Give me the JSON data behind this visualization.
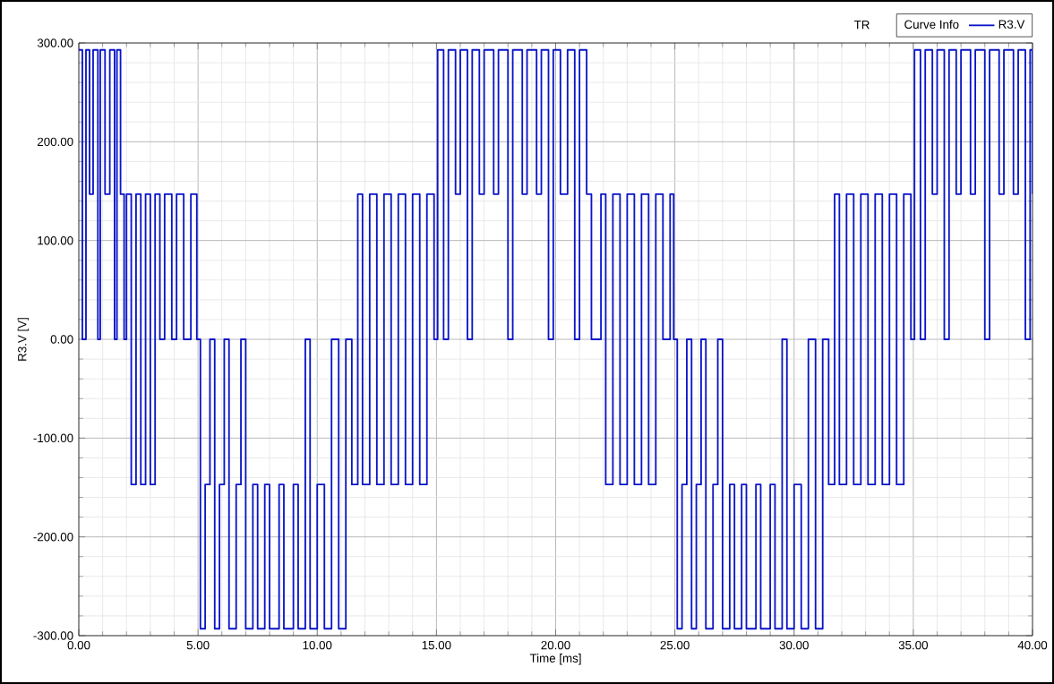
{
  "chart_data": {
    "type": "step",
    "x": [
      0,
      0.15,
      0.3,
      0.45,
      0.6,
      0.8,
      0.9,
      1.1,
      1.3,
      1.5,
      1.6,
      1.75,
      1.9,
      2.0,
      2.2,
      2.4,
      2.6,
      2.8,
      3.0,
      3.2,
      3.4,
      3.6,
      3.9,
      4.1,
      4.4,
      4.7,
      4.95,
      5.1,
      5.3,
      5.5,
      5.7,
      5.9,
      6.1,
      6.3,
      6.6,
      6.8,
      7.0,
      7.3,
      7.5,
      7.8,
      8.0,
      8.4,
      8.6,
      9.0,
      9.2,
      9.5,
      9.7,
      10.0,
      10.3,
      10.6,
      10.9,
      11.2,
      11.45,
      11.7,
      11.9,
      12.2,
      12.5,
      12.8,
      13.1,
      13.4,
      13.7,
      14.0,
      14.3,
      14.6,
      14.9,
      15.05,
      15.3,
      15.5,
      15.8,
      16.0,
      16.3,
      16.5,
      16.8,
      17.0,
      17.4,
      17.6,
      18.0,
      18.2,
      18.6,
      18.8,
      19.2,
      19.4,
      19.7,
      19.9,
      20.2,
      20.5,
      20.8,
      21.0,
      21.3,
      21.5,
      21.9,
      22.1,
      22.4,
      22.7,
      23.0,
      23.3,
      23.6,
      23.9,
      24.2,
      24.5,
      24.8,
      24.95,
      25.1,
      25.3,
      25.5,
      25.7,
      25.9,
      26.1,
      26.3,
      26.6,
      26.8,
      27.0,
      27.3,
      27.5,
      27.8,
      28.0,
      28.4,
      28.6,
      29.0,
      29.2,
      29.5,
      29.7,
      30.0,
      30.3,
      30.6,
      30.9,
      31.2,
      31.45,
      31.7,
      31.9,
      32.2,
      32.5,
      32.8,
      33.1,
      33.4,
      33.7,
      34.0,
      34.3,
      34.6,
      34.9,
      35.05,
      35.3,
      35.5,
      35.8,
      36.0,
      36.3,
      36.5,
      36.8,
      37.0,
      37.4,
      37.6,
      38.0,
      38.2,
      38.6,
      38.8,
      39.2,
      39.4,
      39.7,
      39.9,
      40.0
    ],
    "series": [
      {
        "name": "R3.V",
        "color": "#0a14c8",
        "values": [
          293,
          0,
          293,
          147,
          293,
          0,
          293,
          147,
          293,
          0,
          293,
          147,
          0,
          147,
          -147,
          147,
          -147,
          147,
          -147,
          147,
          0,
          147,
          0,
          147,
          0,
          147,
          0,
          -293,
          -147,
          0,
          -293,
          -147,
          0,
          -293,
          -147,
          0,
          -293,
          -147,
          -293,
          -147,
          -293,
          -147,
          -293,
          -147,
          -293,
          0,
          -293,
          -147,
          -293,
          0,
          -293,
          0,
          -147,
          147,
          -147,
          147,
          -147,
          147,
          -147,
          147,
          -147,
          147,
          -147,
          147,
          0,
          293,
          0,
          293,
          147,
          293,
          0,
          293,
          147,
          293,
          147,
          293,
          0,
          293,
          147,
          293,
          147,
          293,
          0,
          293,
          147,
          293,
          0,
          293,
          147,
          0,
          147,
          -147,
          147,
          -147,
          147,
          -147,
          147,
          -147,
          147,
          0,
          147,
          0,
          -293,
          -147,
          0,
          -293,
          -147,
          0,
          -293,
          -147,
          0,
          -293,
          -147,
          -293,
          -147,
          -293,
          -147,
          -293,
          -147,
          -293,
          0,
          -293,
          -147,
          -293,
          0,
          -293,
          0,
          -147,
          147,
          -147,
          147,
          -147,
          147,
          -147,
          147,
          -147,
          147,
          -147,
          147,
          0,
          293,
          0,
          293,
          147,
          293,
          0,
          293,
          147,
          293,
          147,
          293,
          0,
          293,
          147,
          293,
          147,
          293,
          0,
          293,
          147
        ]
      }
    ],
    "xlabel": "Time [ms]",
    "ylabel": "R3.V [V]",
    "xlim": [
      0,
      40
    ],
    "ylim": [
      -300,
      300
    ],
    "xticks": [
      {
        "value": 0,
        "label": "0.00"
      },
      {
        "value": 5,
        "label": "5.00"
      },
      {
        "value": 10,
        "label": "10.00"
      },
      {
        "value": 15,
        "label": "15.00"
      },
      {
        "value": 20,
        "label": "20.00"
      },
      {
        "value": 25,
        "label": "25.00"
      },
      {
        "value": 30,
        "label": "30.00"
      },
      {
        "value": 35,
        "label": "35.00"
      },
      {
        "value": 40,
        "label": "40.00"
      }
    ],
    "yticks": [
      {
        "value": -300,
        "label": "-300.00"
      },
      {
        "value": -200,
        "label": "-200.00"
      },
      {
        "value": -100,
        "label": "-100.00"
      },
      {
        "value": 0,
        "label": "0.00"
      },
      {
        "value": 100,
        "label": "100.00"
      },
      {
        "value": 200,
        "label": "200.00"
      },
      {
        "value": 300,
        "label": "300.00"
      }
    ],
    "grid": true,
    "legend": "top right",
    "legend_title": "Curve Info",
    "annotations": [
      "TR"
    ],
    "marker": "none",
    "line_style": "solid"
  }
}
